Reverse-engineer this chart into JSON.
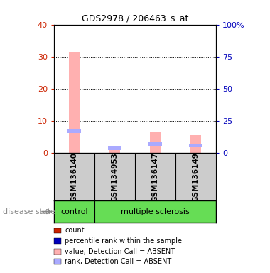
{
  "title": "GDS2978 / 206463_s_at",
  "samples": [
    "GSM136140",
    "GSM134953",
    "GSM136147",
    "GSM136149"
  ],
  "groups": [
    "control",
    "multiple sclerosis",
    "multiple sclerosis",
    "multiple sclerosis"
  ],
  "value_absent": [
    31.5,
    1.8,
    6.5,
    5.5
  ],
  "rank_absent": [
    17.0,
    3.5,
    7.0,
    5.8
  ],
  "ylim_left": [
    0,
    40
  ],
  "ylim_right": [
    0,
    100
  ],
  "yticks_left": [
    0,
    10,
    20,
    30,
    40
  ],
  "yticks_right": [
    0,
    25,
    50,
    75,
    100
  ],
  "ytick_labels_right": [
    "0",
    "25",
    "50",
    "75",
    "100%"
  ],
  "color_count": "#cc2200",
  "color_rank": "#0000bb",
  "color_value_absent": "#ffb0b0",
  "color_rank_absent": "#aaaaff",
  "bg_color": "#cccccc",
  "group_green": "#66dd55",
  "legend_items": [
    {
      "label": "count",
      "color": "#cc2200"
    },
    {
      "label": "percentile rank within the sample",
      "color": "#0000bb"
    },
    {
      "label": "value, Detection Call = ABSENT",
      "color": "#ffb0b0"
    },
    {
      "label": "rank, Detection Call = ABSENT",
      "color": "#aaaaff"
    }
  ],
  "disease_state_label": "disease state",
  "bar_width": 0.25
}
